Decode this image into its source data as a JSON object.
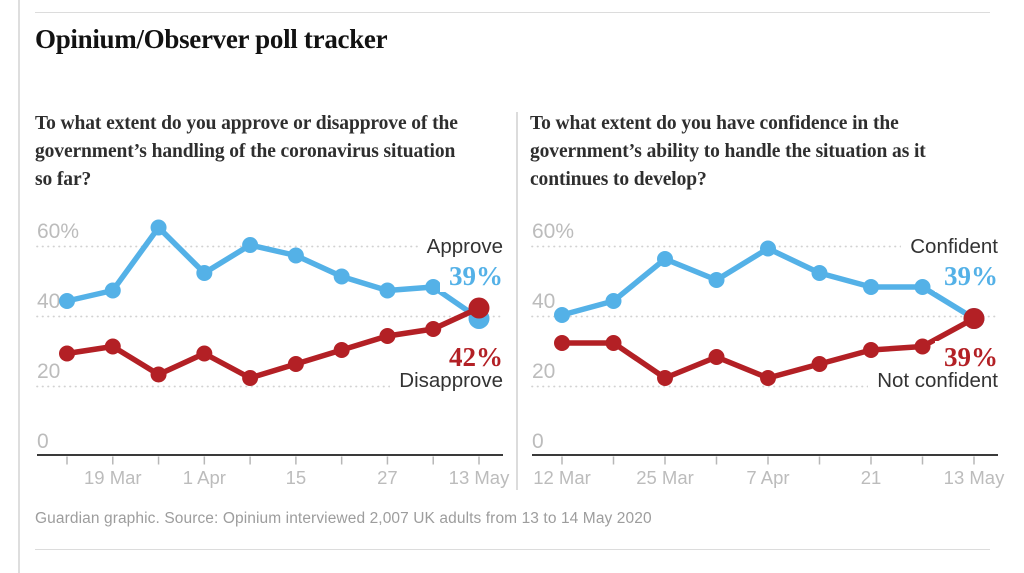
{
  "title": "Opinium/Observer poll tracker",
  "source": "Guardian graphic. Source: Opinium interviewed 2,007 UK adults from 13 to 14 May 2020",
  "colors": {
    "blue": "#54b1e7",
    "red": "#b32025",
    "dark_text": "#333333",
    "axis_text": "#bcbcbc",
    "grid": "#d2d2d2",
    "axis_line": "#3a3a3a",
    "tick": "#b7b7b7",
    "rule": "#dcdcdc"
  },
  "chart_data": [
    {
      "type": "line",
      "title": "To what extent do you approve or disapprove of the government’s handling of the coronavirus situation so far?",
      "x_tick_labels": [
        "",
        "19 Mar",
        "",
        "1 Apr",
        "",
        "15",
        "",
        "27",
        "",
        "13 May"
      ],
      "y_axis": {
        "labels": [
          "60%",
          "40",
          "20",
          "0"
        ],
        "values": [
          60,
          40,
          20,
          0
        ]
      },
      "ylim": [
        0,
        70
      ],
      "grid": "dotted-horizontal",
      "legend_position": "line-end",
      "series": [
        {
          "name": "Approve",
          "color": "#54b1e7",
          "values": [
            44,
            47,
            65,
            52,
            60,
            57,
            51,
            47,
            48,
            39
          ],
          "end_label": "Approve",
          "end_value": "39%"
        },
        {
          "name": "Disapprove",
          "color": "#b32025",
          "values": [
            29,
            31,
            23,
            29,
            22,
            26,
            30,
            34,
            36,
            42
          ],
          "end_label": "Disapprove",
          "end_value": "42%"
        }
      ]
    },
    {
      "type": "line",
      "title": "To what extent do you have confidence in the government’s ability to handle the situation as it continues to develop?",
      "x_tick_labels": [
        "12 Mar",
        "",
        "25 Mar",
        "",
        "7 Apr",
        "",
        "21",
        "",
        "13 May"
      ],
      "y_axis": {
        "labels": [
          "60%",
          "40",
          "20",
          "0"
        ],
        "values": [
          60,
          40,
          20,
          0
        ]
      },
      "ylim": [
        0,
        70
      ],
      "grid": "dotted-horizontal",
      "legend_position": "line-end",
      "series": [
        {
          "name": "Confident",
          "color": "#54b1e7",
          "values": [
            40,
            44,
            56,
            50,
            59,
            52,
            48,
            48,
            39
          ],
          "end_label": "Confident",
          "end_value": "39%"
        },
        {
          "name": "Not confident",
          "color": "#b32025",
          "values": [
            32,
            32,
            22,
            28,
            22,
            26,
            30,
            31,
            39
          ],
          "end_label": "Not confident",
          "end_value": "39%"
        }
      ]
    }
  ]
}
